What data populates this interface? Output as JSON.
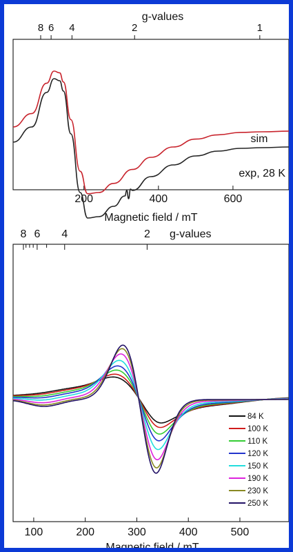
{
  "chart_data": [
    {
      "type": "line",
      "xlabel": "Magnetic field / mT",
      "top_axis_label": "g-values",
      "x_ticks": [
        "200",
        "400",
        "600"
      ],
      "g_ticks": [
        "8",
        "6",
        "4",
        "2",
        "1"
      ],
      "xlim": [
        10,
        750
      ],
      "series": [
        {
          "name": "sim",
          "color": "#c8232c",
          "x": [
            10,
            60,
            100,
            120,
            135,
            145,
            165,
            190,
            210,
            240,
            280,
            330,
            380,
            440,
            500,
            560,
            620,
            680,
            750
          ],
          "y": [
            0.08,
            0.3,
            0.8,
            1.0,
            0.97,
            0.82,
            0.2,
            -0.65,
            -1.02,
            -1.0,
            -0.85,
            -0.62,
            -0.42,
            -0.25,
            -0.12,
            -0.05,
            -0.01,
            0.0,
            0.01
          ]
        },
        {
          "name": "exp, 28 K",
          "color": "#222222",
          "x": [
            10,
            60,
            100,
            120,
            135,
            145,
            165,
            190,
            210,
            240,
            280,
            310,
            315,
            320,
            325,
            330,
            380,
            440,
            500,
            560,
            620,
            680,
            750
          ],
          "y": [
            0.08,
            0.3,
            0.8,
            1.0,
            0.97,
            0.82,
            0.2,
            -0.65,
            -1.02,
            -1.0,
            -0.85,
            -0.7,
            -0.62,
            -0.74,
            -0.6,
            -0.62,
            -0.42,
            -0.25,
            -0.12,
            -0.05,
            -0.01,
            0.0,
            0.01
          ]
        }
      ]
    },
    {
      "type": "line",
      "xlabel": "Magnetic field / mT",
      "top_axis_label": "g-values",
      "x_ticks": [
        "100",
        "200",
        "300",
        "400",
        "500"
      ],
      "g_ticks": [
        "8",
        "6",
        "4",
        "2"
      ],
      "xlim": [
        60,
        595
      ],
      "series": [
        {
          "name": "84 K",
          "color": "#111111",
          "amp": 0.25
        },
        {
          "name": "100 K",
          "color": "#d01c1c",
          "amp": 0.32
        },
        {
          "name": "110 K",
          "color": "#33cc33",
          "amp": 0.42
        },
        {
          "name": "120 K",
          "color": "#2233cc",
          "amp": 0.52
        },
        {
          "name": "150 K",
          "color": "#22dddd",
          "amp": 0.65
        },
        {
          "name": "190 K",
          "color": "#dd22dd",
          "amp": 0.8
        },
        {
          "name": "230 K",
          "color": "#888822",
          "amp": 0.92
        },
        {
          "name": "250 K",
          "color": "#221166",
          "amp": 1.0
        }
      ]
    }
  ]
}
